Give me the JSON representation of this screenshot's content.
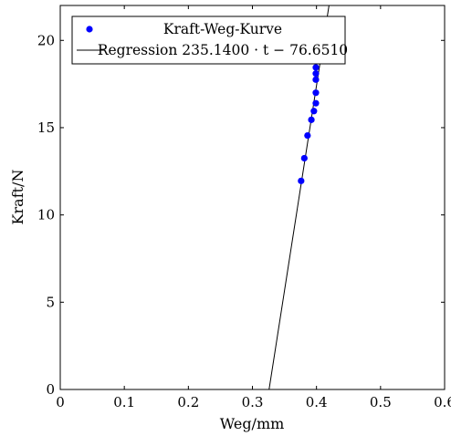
{
  "chart_data": {
    "type": "scatter",
    "xlabel": "Weg/mm",
    "ylabel": "Kraft/N",
    "xlim": [
      0,
      0.6
    ],
    "ylim": [
      0,
      22
    ],
    "x_ticks": [
      0,
      0.1,
      0.2,
      0.3,
      0.4,
      0.5,
      0.6
    ],
    "x_tick_labels": [
      "0",
      "0.1",
      "0.2",
      "0.3",
      "0.4",
      "0.5",
      "0.6"
    ],
    "y_ticks": [
      0,
      5,
      10,
      15,
      20
    ],
    "y_tick_labels": [
      "0",
      "5",
      "10",
      "15",
      "20"
    ],
    "grid": false,
    "legend_position": "top-left",
    "series": [
      {
        "name": "Kraft-Weg-Kurve",
        "kind": "scatter",
        "color": "#0000ff",
        "points": [
          {
            "x": 0.376,
            "y": 11.95
          },
          {
            "x": 0.381,
            "y": 13.25
          },
          {
            "x": 0.386,
            "y": 14.55
          },
          {
            "x": 0.392,
            "y": 15.45
          },
          {
            "x": 0.396,
            "y": 15.95
          },
          {
            "x": 0.399,
            "y": 16.4
          },
          {
            "x": 0.399,
            "y": 17.0
          },
          {
            "x": 0.399,
            "y": 17.75
          },
          {
            "x": 0.399,
            "y": 18.1
          },
          {
            "x": 0.399,
            "y": 18.45
          }
        ]
      },
      {
        "name": "Regression",
        "legend_label": "Regression 235.1400 · t − 76.6510",
        "kind": "line",
        "color": "#000000",
        "slope": 235.14,
        "intercept": -76.651
      }
    ]
  }
}
